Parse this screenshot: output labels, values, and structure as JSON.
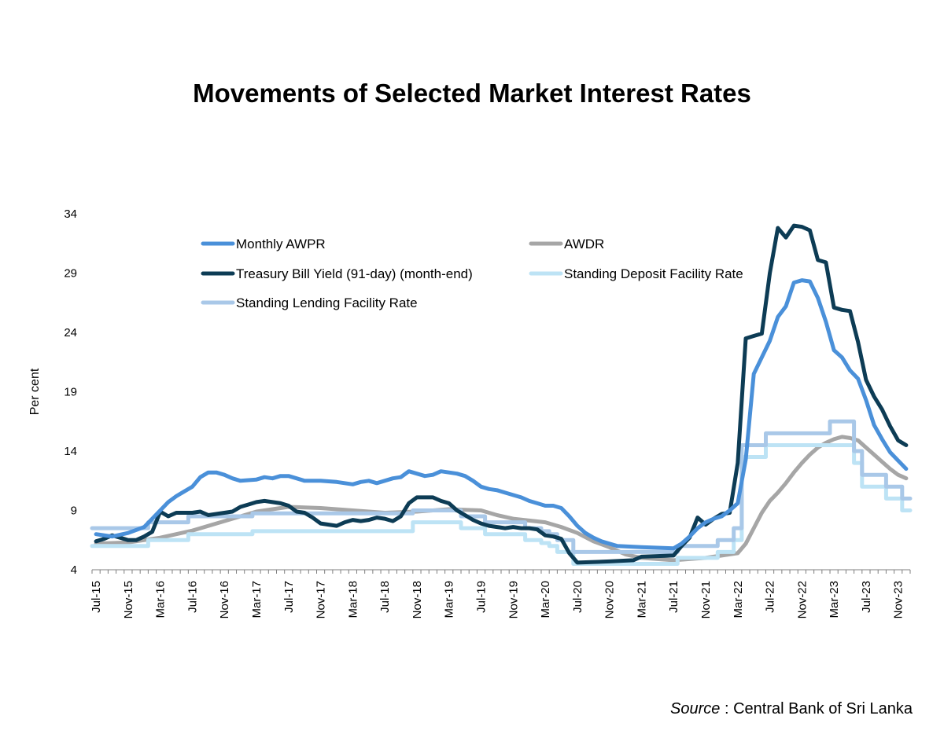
{
  "chart_data": {
    "type": "line",
    "title": "Movements of Selected Market Interest Rates",
    "xlabel": "",
    "ylabel": "Per cent",
    "ylim": [
      4,
      34
    ],
    "yticks": [
      "4",
      "9",
      "14",
      "19",
      "24",
      "29",
      "34"
    ],
    "xticks": [
      "Jul-15",
      "Nov-15",
      "Mar-16",
      "Jul-16",
      "Nov-16",
      "Mar-17",
      "Jul-17",
      "Nov-17",
      "Mar-18",
      "Jul-18",
      "Nov-18",
      "Mar-19",
      "Jul-19",
      "Nov-19",
      "Mar-20",
      "Jul-20",
      "Nov-20",
      "Mar-21",
      "Jul-21",
      "Nov-21",
      "Mar-22",
      "Jul-22",
      "Nov-22",
      "Mar-23",
      "Jul-23",
      "Nov-23"
    ],
    "grid": false,
    "legend_position": "top-left",
    "series": [
      {
        "name": "Monthly AWPR",
        "color": "#4A90D9",
        "step": false,
        "points": [
          [
            "Jul-15",
            7.0
          ],
          [
            "Sep-15",
            6.8
          ],
          [
            "Nov-15",
            7.1
          ],
          [
            "Jan-16",
            7.6
          ],
          [
            "Feb-16",
            8.3
          ],
          [
            "Mar-16",
            9.0
          ],
          [
            "Apr-16",
            9.7
          ],
          [
            "May-16",
            10.2
          ],
          [
            "Jun-16",
            10.6
          ],
          [
            "Jul-16",
            11.0
          ],
          [
            "Aug-16",
            11.8
          ],
          [
            "Sep-16",
            12.2
          ],
          [
            "Oct-16",
            12.2
          ],
          [
            "Nov-16",
            12.0
          ],
          [
            "Dec-16",
            11.7
          ],
          [
            "Jan-17",
            11.5
          ],
          [
            "Mar-17",
            11.6
          ],
          [
            "Apr-17",
            11.8
          ],
          [
            "May-17",
            11.7
          ],
          [
            "Jun-17",
            11.9
          ],
          [
            "Jul-17",
            11.9
          ],
          [
            "Aug-17",
            11.7
          ],
          [
            "Sep-17",
            11.5
          ],
          [
            "Nov-17",
            11.5
          ],
          [
            "Jan-18",
            11.4
          ],
          [
            "Mar-18",
            11.2
          ],
          [
            "Apr-18",
            11.4
          ],
          [
            "May-18",
            11.5
          ],
          [
            "Jun-18",
            11.3
          ],
          [
            "Aug-18",
            11.7
          ],
          [
            "Sep-18",
            11.8
          ],
          [
            "Oct-18",
            12.3
          ],
          [
            "Nov-18",
            12.1
          ],
          [
            "Dec-18",
            11.9
          ],
          [
            "Jan-19",
            12.0
          ],
          [
            "Feb-19",
            12.3
          ],
          [
            "Mar-19",
            12.2
          ],
          [
            "Apr-19",
            12.1
          ],
          [
            "May-19",
            11.9
          ],
          [
            "Jun-19",
            11.5
          ],
          [
            "Jul-19",
            11.0
          ],
          [
            "Aug-19",
            10.8
          ],
          [
            "Sep-19",
            10.7
          ],
          [
            "Oct-19",
            10.5
          ],
          [
            "Nov-19",
            10.3
          ],
          [
            "Dec-19",
            10.1
          ],
          [
            "Jan-20",
            9.8
          ],
          [
            "Feb-20",
            9.6
          ],
          [
            "Mar-20",
            9.4
          ],
          [
            "Apr-20",
            9.4
          ],
          [
            "May-20",
            9.2
          ],
          [
            "Jun-20",
            8.5
          ],
          [
            "Jul-20",
            7.7
          ],
          [
            "Aug-20",
            7.1
          ],
          [
            "Sep-20",
            6.7
          ],
          [
            "Oct-20",
            6.4
          ],
          [
            "Nov-20",
            6.2
          ],
          [
            "Dec-20",
            6.0
          ],
          [
            "Mar-21",
            5.9
          ],
          [
            "Jul-21",
            5.8
          ],
          [
            "Aug-21",
            6.2
          ],
          [
            "Sep-21",
            6.8
          ],
          [
            "Oct-21",
            7.5
          ],
          [
            "Nov-21",
            8.0
          ],
          [
            "Dec-21",
            8.3
          ],
          [
            "Jan-22",
            8.5
          ],
          [
            "Feb-22",
            9.0
          ],
          [
            "Mar-22",
            9.6
          ],
          [
            "Apr-22",
            13.3
          ],
          [
            "May-22",
            20.5
          ],
          [
            "Jun-22",
            21.9
          ],
          [
            "Jul-22",
            23.3
          ],
          [
            "Aug-22",
            25.3
          ],
          [
            "Sep-22",
            26.2
          ],
          [
            "Oct-22",
            28.2
          ],
          [
            "Nov-22",
            28.4
          ],
          [
            "Dec-22",
            28.3
          ],
          [
            "Jan-23",
            26.9
          ],
          [
            "Feb-23",
            24.9
          ],
          [
            "Mar-23",
            22.5
          ],
          [
            "Apr-23",
            21.9
          ],
          [
            "May-23",
            20.8
          ],
          [
            "Jun-23",
            20.1
          ],
          [
            "Jul-23",
            18.3
          ],
          [
            "Aug-23",
            16.2
          ],
          [
            "Sep-23",
            15.0
          ],
          [
            "Oct-23",
            13.9
          ],
          [
            "Nov-23",
            13.2
          ],
          [
            "Dec-23",
            12.5
          ]
        ]
      },
      {
        "name": "AWDR",
        "color": "#A6A6A6",
        "step": false,
        "points": [
          [
            "Jul-15",
            6.2
          ],
          [
            "Nov-15",
            6.3
          ],
          [
            "Mar-16",
            6.7
          ],
          [
            "Jul-16",
            7.3
          ],
          [
            "Nov-16",
            8.1
          ],
          [
            "Mar-17",
            8.9
          ],
          [
            "Jul-17",
            9.3
          ],
          [
            "Nov-17",
            9.2
          ],
          [
            "Mar-18",
            9.0
          ],
          [
            "Jul-18",
            8.8
          ],
          [
            "Nov-18",
            8.9
          ],
          [
            "Mar-19",
            9.1
          ],
          [
            "Jul-19",
            9.0
          ],
          [
            "Sep-19",
            8.6
          ],
          [
            "Nov-19",
            8.3
          ],
          [
            "Mar-20",
            8.0
          ],
          [
            "May-20",
            7.6
          ],
          [
            "Jul-20",
            7.1
          ],
          [
            "Sep-20",
            6.4
          ],
          [
            "Nov-20",
            5.9
          ],
          [
            "Jan-21",
            5.3
          ],
          [
            "Mar-21",
            5.0
          ],
          [
            "Jul-21",
            4.8
          ],
          [
            "Nov-21",
            5.0
          ],
          [
            "Mar-22",
            5.4
          ],
          [
            "Apr-22",
            6.2
          ],
          [
            "May-22",
            7.5
          ],
          [
            "Jun-22",
            8.8
          ],
          [
            "Jul-22",
            9.8
          ],
          [
            "Aug-22",
            10.5
          ],
          [
            "Sep-22",
            11.3
          ],
          [
            "Oct-22",
            12.2
          ],
          [
            "Nov-22",
            13.0
          ],
          [
            "Dec-22",
            13.7
          ],
          [
            "Jan-23",
            14.3
          ],
          [
            "Feb-23",
            14.7
          ],
          [
            "Mar-23",
            15.0
          ],
          [
            "Apr-23",
            15.2
          ],
          [
            "May-23",
            15.1
          ],
          [
            "Jun-23",
            14.9
          ],
          [
            "Jul-23",
            14.3
          ],
          [
            "Aug-23",
            13.7
          ],
          [
            "Sep-23",
            13.1
          ],
          [
            "Oct-23",
            12.5
          ],
          [
            "Nov-23",
            12.0
          ],
          [
            "Dec-23",
            11.7
          ]
        ]
      },
      {
        "name": "Treasury Bill Yield (91-day) (month-end)",
        "color": "#0D3C55",
        "step": false,
        "points": [
          [
            "Jul-15",
            6.4
          ],
          [
            "Aug-15",
            6.6
          ],
          [
            "Sep-15",
            6.9
          ],
          [
            "Oct-15",
            6.7
          ],
          [
            "Nov-15",
            6.5
          ],
          [
            "Dec-15",
            6.5
          ],
          [
            "Jan-16",
            6.8
          ],
          [
            "Feb-16",
            7.2
          ],
          [
            "Mar-16",
            8.9
          ],
          [
            "Apr-16",
            8.5
          ],
          [
            "May-16",
            8.8
          ],
          [
            "Jun-16",
            8.8
          ],
          [
            "Jul-16",
            8.8
          ],
          [
            "Aug-16",
            8.9
          ],
          [
            "Sep-16",
            8.6
          ],
          [
            "Oct-16",
            8.7
          ],
          [
            "Nov-16",
            8.8
          ],
          [
            "Dec-16",
            8.9
          ],
          [
            "Jan-17",
            9.3
          ],
          [
            "Feb-17",
            9.5
          ],
          [
            "Mar-17",
            9.7
          ],
          [
            "Apr-17",
            9.8
          ],
          [
            "May-17",
            9.7
          ],
          [
            "Jun-17",
            9.6
          ],
          [
            "Jul-17",
            9.4
          ],
          [
            "Aug-17",
            8.9
          ],
          [
            "Sep-17",
            8.8
          ],
          [
            "Oct-17",
            8.4
          ],
          [
            "Nov-17",
            7.9
          ],
          [
            "Dec-17",
            7.8
          ],
          [
            "Jan-18",
            7.7
          ],
          [
            "Feb-18",
            8.0
          ],
          [
            "Mar-18",
            8.2
          ],
          [
            "Apr-18",
            8.1
          ],
          [
            "May-18",
            8.2
          ],
          [
            "Jun-18",
            8.4
          ],
          [
            "Jul-18",
            8.3
          ],
          [
            "Aug-18",
            8.1
          ],
          [
            "Sep-18",
            8.5
          ],
          [
            "Oct-18",
            9.6
          ],
          [
            "Nov-18",
            10.1
          ],
          [
            "Dec-18",
            10.1
          ],
          [
            "Jan-19",
            10.1
          ],
          [
            "Feb-19",
            9.8
          ],
          [
            "Mar-19",
            9.6
          ],
          [
            "Apr-19",
            9.0
          ],
          [
            "May-19",
            8.6
          ],
          [
            "Jun-19",
            8.2
          ],
          [
            "Jul-19",
            7.9
          ],
          [
            "Aug-19",
            7.7
          ],
          [
            "Sep-19",
            7.6
          ],
          [
            "Oct-19",
            7.5
          ],
          [
            "Nov-19",
            7.6
          ],
          [
            "Dec-19",
            7.5
          ],
          [
            "Jan-20",
            7.5
          ],
          [
            "Feb-20",
            7.4
          ],
          [
            "Mar-20",
            6.9
          ],
          [
            "Apr-20",
            6.8
          ],
          [
            "May-20",
            6.6
          ],
          [
            "Jun-20",
            5.4
          ],
          [
            "Jul-20",
            4.6
          ],
          [
            "Nov-20",
            4.7
          ],
          [
            "Feb-21",
            4.8
          ],
          [
            "Mar-21",
            5.1
          ],
          [
            "Jul-21",
            5.2
          ],
          [
            "Aug-21",
            6.0
          ],
          [
            "Sep-21",
            6.7
          ],
          [
            "Oct-21",
            8.4
          ],
          [
            "Nov-21",
            7.8
          ],
          [
            "Dec-21",
            8.3
          ],
          [
            "Jan-22",
            8.7
          ],
          [
            "Feb-22",
            8.8
          ],
          [
            "Mar-22",
            13.0
          ],
          [
            "Apr-22",
            23.5
          ],
          [
            "May-22",
            23.7
          ],
          [
            "Jun-22",
            23.9
          ],
          [
            "Jul-22",
            29.0
          ],
          [
            "Aug-22",
            32.8
          ],
          [
            "Sep-22",
            32.0
          ],
          [
            "Oct-22",
            33.0
          ],
          [
            "Nov-22",
            32.9
          ],
          [
            "Dec-22",
            32.6
          ],
          [
            "Jan-23",
            30.1
          ],
          [
            "Feb-23",
            29.9
          ],
          [
            "Mar-23",
            26.1
          ],
          [
            "Apr-23",
            25.9
          ],
          [
            "May-23",
            25.8
          ],
          [
            "Jun-23",
            23.2
          ],
          [
            "Jul-23",
            20.0
          ],
          [
            "Aug-23",
            18.6
          ],
          [
            "Sep-23",
            17.5
          ],
          [
            "Oct-23",
            16.1
          ],
          [
            "Nov-23",
            14.9
          ],
          [
            "Dec-23",
            14.5
          ]
        ]
      },
      {
        "name": "Standing Deposit Facility Rate",
        "color": "#BDE3F5",
        "step": true,
        "points": [
          [
            "Jul-15",
            6.0
          ],
          [
            "Feb-16",
            6.5
          ],
          [
            "Jul-16",
            7.0
          ],
          [
            "Mar-17",
            7.25
          ],
          [
            "Nov-18",
            8.0
          ],
          [
            "May-19",
            7.5
          ],
          [
            "Aug-19",
            7.0
          ],
          [
            "Jan-20",
            6.5
          ],
          [
            "Mar-20",
            6.25
          ],
          [
            "Apr-20",
            6.0
          ],
          [
            "May-20",
            5.5
          ],
          [
            "Jul-20",
            4.5
          ],
          [
            "Aug-21",
            5.0
          ],
          [
            "Jan-22",
            5.5
          ],
          [
            "Mar-22",
            6.5
          ],
          [
            "Apr-22",
            13.5
          ],
          [
            "Jul-22",
            14.5
          ],
          [
            "Jun-23",
            13.0
          ],
          [
            "Jul-23",
            11.0
          ],
          [
            "Oct-23",
            10.0
          ],
          [
            "Dec-23",
            9.0
          ]
        ]
      },
      {
        "name": "Standing Lending Facility Rate",
        "color": "#A9C8E8",
        "step": true,
        "points": [
          [
            "Jul-15",
            7.5
          ],
          [
            "Feb-16",
            8.0
          ],
          [
            "Jul-16",
            8.5
          ],
          [
            "Mar-17",
            8.75
          ],
          [
            "Nov-18",
            9.0
          ],
          [
            "May-19",
            8.5
          ],
          [
            "Aug-19",
            8.0
          ],
          [
            "Jan-20",
            7.5
          ],
          [
            "Mar-20",
            7.25
          ],
          [
            "Apr-20",
            7.0
          ],
          [
            "May-20",
            6.5
          ],
          [
            "Jul-20",
            5.5
          ],
          [
            "Aug-21",
            6.0
          ],
          [
            "Jan-22",
            6.5
          ],
          [
            "Mar-22",
            7.5
          ],
          [
            "Apr-22",
            14.5
          ],
          [
            "Jul-22",
            15.5
          ],
          [
            "Mar-23",
            16.5
          ],
          [
            "Jun-23",
            14.0
          ],
          [
            "Jul-23",
            12.0
          ],
          [
            "Oct-23",
            11.0
          ],
          [
            "Dec-23",
            10.0
          ]
        ]
      }
    ],
    "legend": [
      {
        "label": "Monthly AWPR",
        "color": "#4A90D9"
      },
      {
        "label": "AWDR",
        "color": "#A6A6A6"
      },
      {
        "label": "Treasury Bill Yield (91-day) (month-end)",
        "color": "#0D3C55"
      },
      {
        "label": "Standing Deposit Facility Rate",
        "color": "#BDE3F5"
      },
      {
        "label": "Standing Lending Facility Rate",
        "color": "#A9C8E8"
      }
    ]
  },
  "source": {
    "label": "Source",
    "text": " : Central Bank of Sri Lanka"
  }
}
